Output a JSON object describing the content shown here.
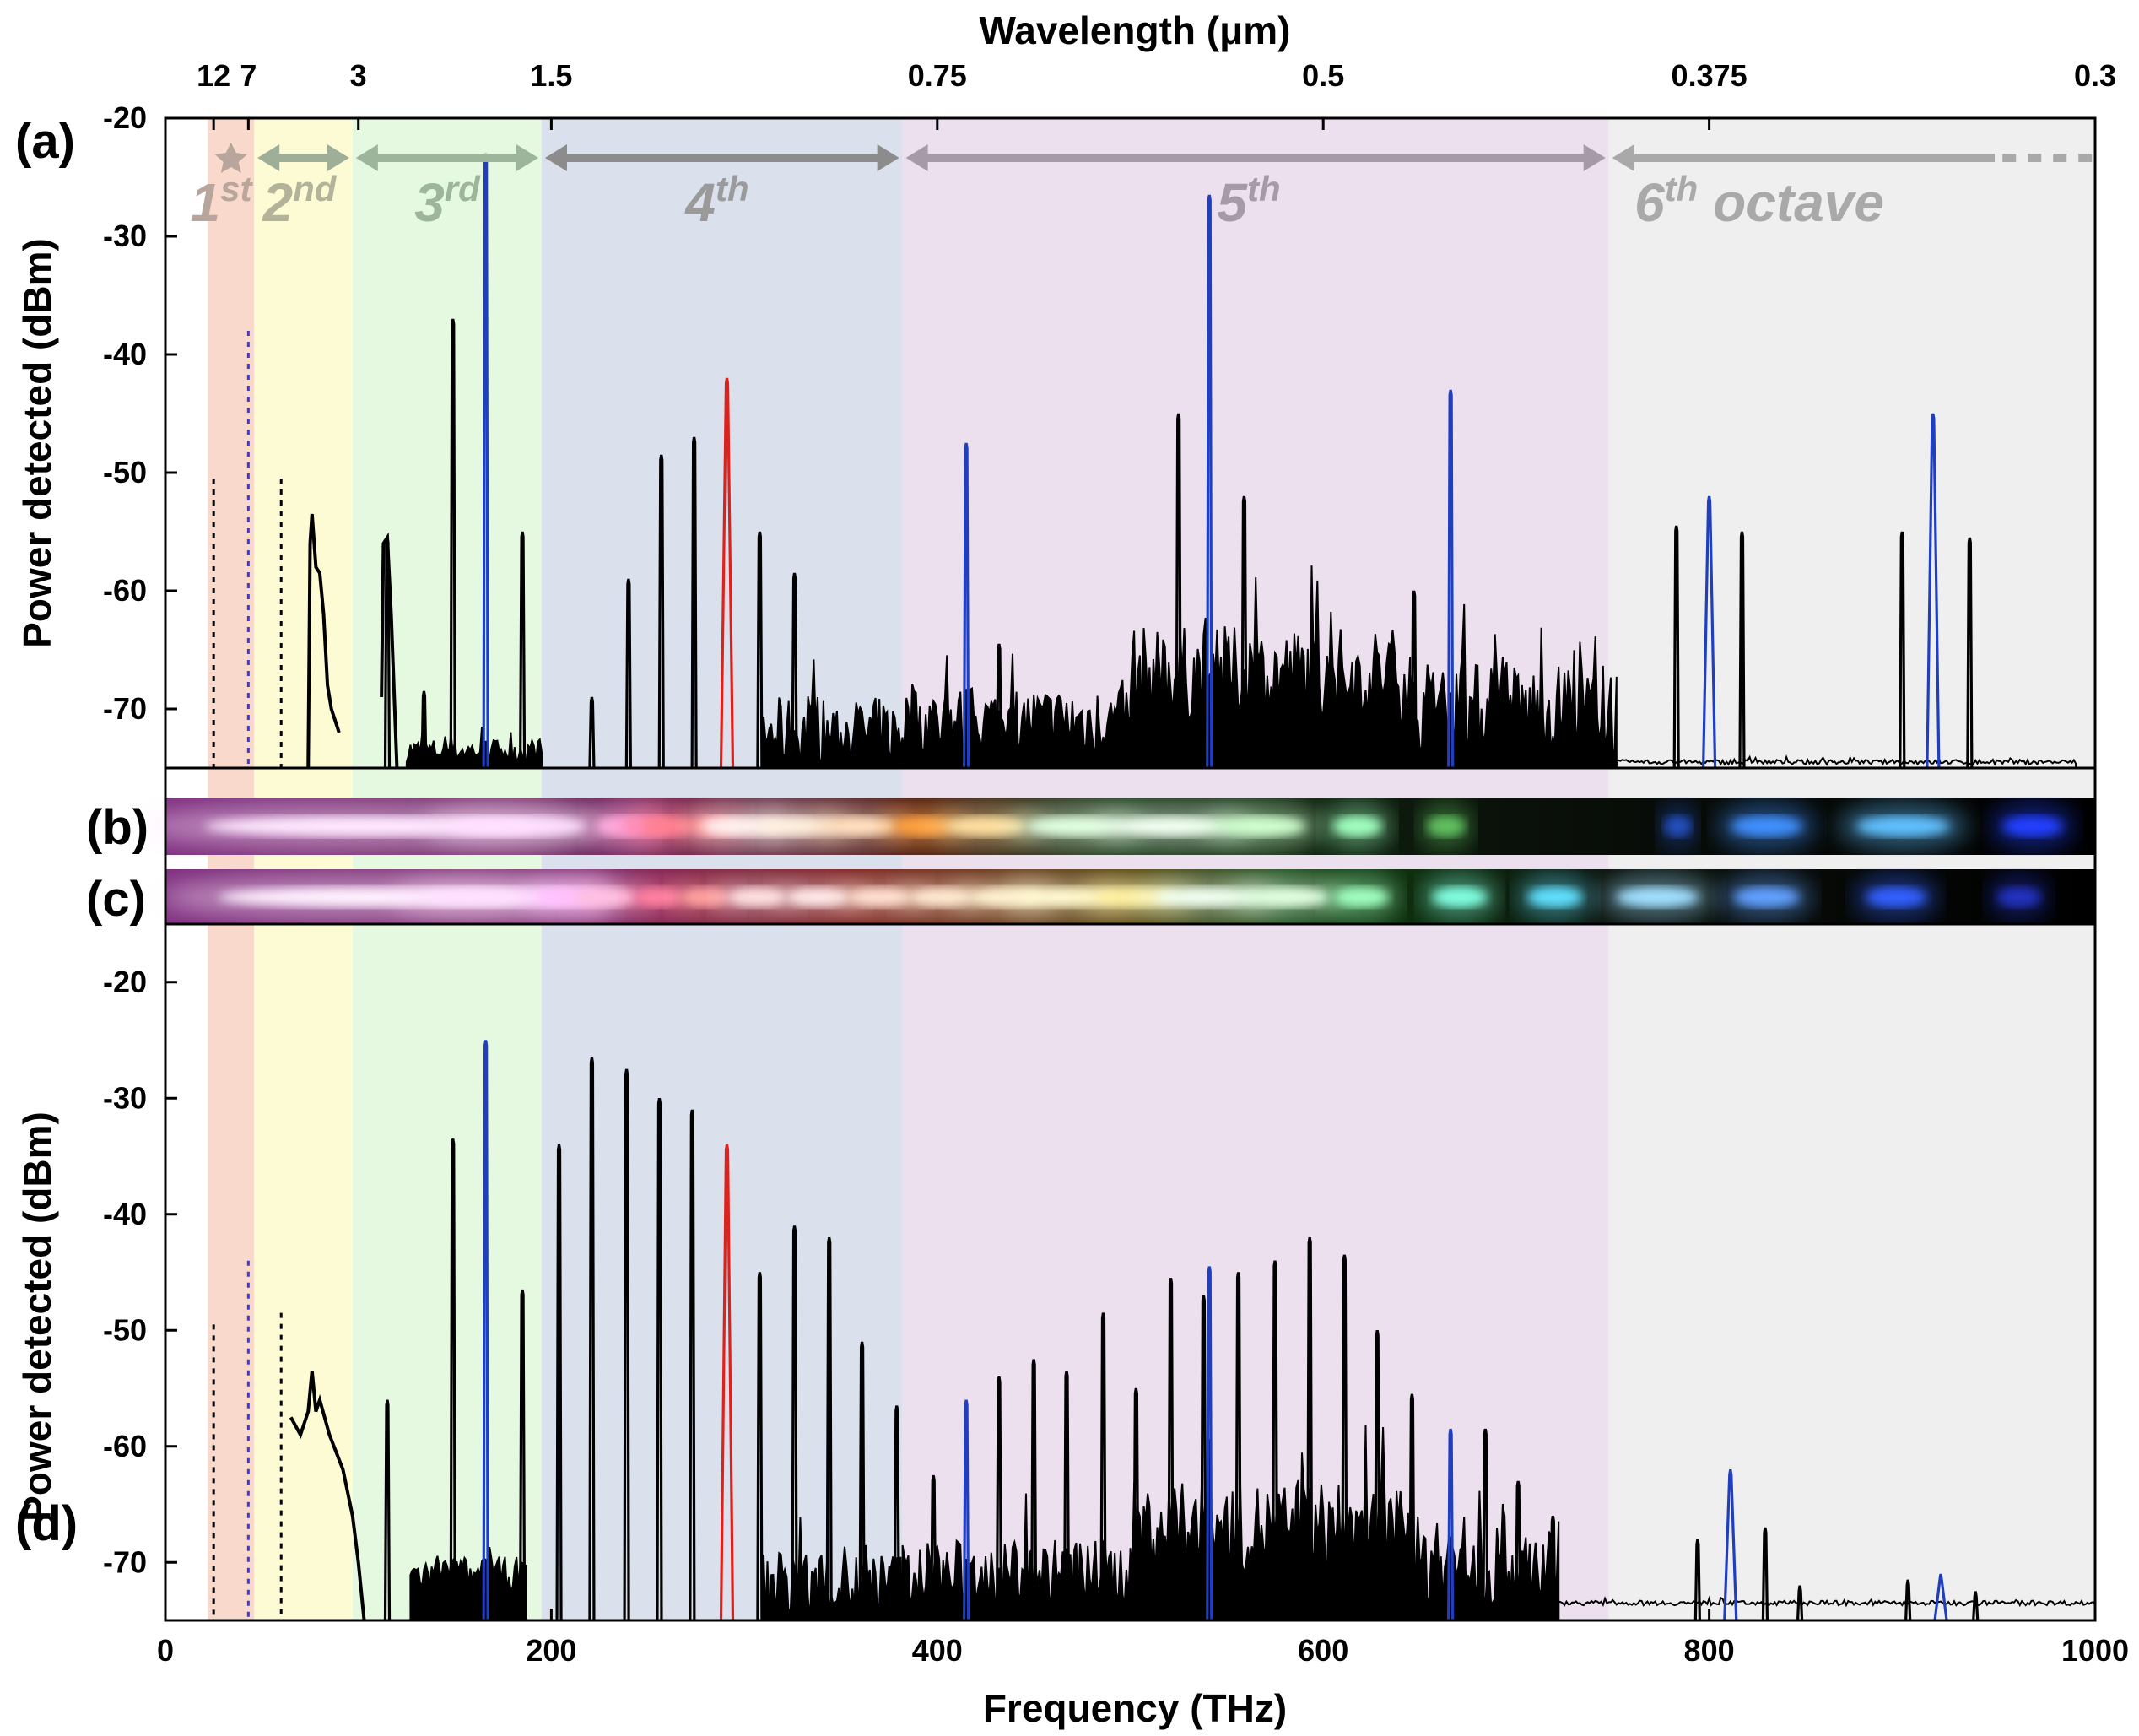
{
  "chart_data": [
    {
      "panel": "(a)",
      "type": "line",
      "xlabel": "Frequency (THz)",
      "ylabel": "Power detected (dBm)",
      "xlim": [
        0,
        1000
      ],
      "ylim": [
        -75,
        -20
      ],
      "yticks": [
        -20,
        -30,
        -40,
        -50,
        -60,
        -70
      ],
      "xticks": [
        0,
        200,
        400,
        600,
        800,
        1000
      ],
      "top_axis_label": "Wavelength (μm)",
      "top_ticks": [
        {
          "label": "12",
          "freq": 25
        },
        {
          "label": "7",
          "freq": 43
        },
        {
          "label": "3",
          "freq": 100
        },
        {
          "label": "1.5",
          "freq": 200
        },
        {
          "label": "0.75",
          "freq": 400
        },
        {
          "label": "0.5",
          "freq": 600
        },
        {
          "label": "0.375",
          "freq": 800
        },
        {
          "label": "0.3",
          "freq": 1000
        }
      ],
      "octaves": [
        {
          "label": "1",
          "sup": "st",
          "from": 22,
          "to": 46,
          "color": "#f9d9cc",
          "text_color": "#b8a59b"
        },
        {
          "label": "2",
          "sup": "nd",
          "from": 46,
          "to": 97,
          "color": "#fdfbd3",
          "text_color": "#b3b39a"
        },
        {
          "label": "3",
          "sup": "rd",
          "from": 97,
          "to": 195,
          "color": "#e5f8e0",
          "text_color": "#9db59a"
        },
        {
          "label": "4",
          "sup": "th",
          "from": 195,
          "to": 382,
          "color": "#dae1ec",
          "text_color": "#9a9a9a"
        },
        {
          "label": "5",
          "sup": "th",
          "from": 382,
          "to": 748,
          "color": "#ece0ef",
          "text_color": "#a69aa8"
        },
        {
          "label": "6",
          "sup": "th",
          "suffix": " octave",
          "from": 748,
          "to": 1000,
          "color": "#efefef",
          "text_color": "#a9a9a9"
        }
      ],
      "baseline_noise": [
        {
          "from": 125,
          "to": 195,
          "level": -73.5,
          "amp": 1
        },
        {
          "from": 310,
          "to": 382,
          "level": -72,
          "amp": 3
        },
        {
          "from": 382,
          "to": 500,
          "level": -71,
          "amp": 3
        },
        {
          "from": 500,
          "to": 645,
          "level": -67,
          "amp": 4
        },
        {
          "from": 645,
          "to": 752,
          "level": -70,
          "amp": 4
        },
        {
          "from": 752,
          "to": 990,
          "level": -74.5,
          "amp": 0.2
        }
      ],
      "series": [
        {
          "color": "#000000",
          "peaks": [
            {
              "x": 115,
              "y": -55.5
            },
            {
              "x": 134,
              "y": -68.5
            },
            {
              "x": 149,
              "y": -37
            },
            {
              "x": 185,
              "y": -55
            },
            {
              "x": 221,
              "y": -69
            },
            {
              "x": 240,
              "y": -59
            },
            {
              "x": 257,
              "y": -48.5
            },
            {
              "x": 274,
              "y": -47
            },
            {
              "x": 308,
              "y": -55
            },
            {
              "x": 326,
              "y": -58.5
            },
            {
              "x": 432,
              "y": -64.5
            },
            {
              "x": 525,
              "y": -45
            },
            {
              "x": 559,
              "y": -52
            },
            {
              "x": 647,
              "y": -60
            },
            {
              "x": 783,
              "y": -54.5
            },
            {
              "x": 817,
              "y": -55
            },
            {
              "x": 900,
              "y": -55
            },
            {
              "x": 935,
              "y": -55.5
            }
          ]
        },
        {
          "color": "#1f3fbf",
          "peaks": [
            {
              "x": 166,
              "y": -23
            },
            {
              "x": 415,
              "y": -47.5
            },
            {
              "x": 541,
              "y": -26.5
            },
            {
              "x": 666,
              "y": -43
            },
            {
              "x": 800,
              "y": -52
            },
            {
              "x": 916,
              "y": -45
            }
          ]
        },
        {
          "color": "#e0201a",
          "peaks": [
            {
              "x": 291,
              "y": -42
            }
          ]
        }
      ],
      "dotted_lines": [
        {
          "x": 25,
          "y_top": -50.5,
          "color": "#000000"
        },
        {
          "x": 43,
          "y_top": -38,
          "color": "#3a3ae0"
        },
        {
          "x": 60,
          "y_top": -50.5,
          "color": "#000000"
        }
      ]
    },
    {
      "panel": "(d)",
      "type": "line",
      "xlabel": "Frequency (THz)",
      "ylabel": "Power detected (dBm)",
      "xlim": [
        0,
        1000
      ],
      "ylim": [
        -75,
        -15
      ],
      "yticks": [
        -20,
        -30,
        -40,
        -50,
        -60,
        -70
      ],
      "xticks": [
        0,
        200,
        400,
        600,
        800,
        1000
      ],
      "baseline_noise": [
        {
          "from": 127,
          "to": 187,
          "level": -71,
          "amp": 1.5
        },
        {
          "from": 310,
          "to": 382,
          "level": -72,
          "amp": 3
        },
        {
          "from": 382,
          "to": 500,
          "level": -71,
          "amp": 3
        },
        {
          "from": 500,
          "to": 645,
          "level": -67,
          "amp": 4
        },
        {
          "from": 645,
          "to": 722,
          "level": -70,
          "amp": 4
        },
        {
          "from": 722,
          "to": 1000,
          "level": -73.5,
          "amp": 0.2
        }
      ],
      "series": [
        {
          "color": "#000000",
          "peaks": [
            {
              "x": 115,
              "y": -56
            },
            {
              "x": 149,
              "y": -33.5
            },
            {
              "x": 185,
              "y": -46.5
            },
            {
              "x": 204,
              "y": -34
            },
            {
              "x": 221,
              "y": -26.5
            },
            {
              "x": 239,
              "y": -27.5
            },
            {
              "x": 256,
              "y": -30
            },
            {
              "x": 273,
              "y": -31
            },
            {
              "x": 308,
              "y": -45
            },
            {
              "x": 326,
              "y": -41
            },
            {
              "x": 344,
              "y": -42
            },
            {
              "x": 361,
              "y": -51
            },
            {
              "x": 379,
              "y": -56.5
            },
            {
              "x": 398,
              "y": -62.5
            },
            {
              "x": 432,
              "y": -54
            },
            {
              "x": 450,
              "y": -52.5
            },
            {
              "x": 467,
              "y": -53.5
            },
            {
              "x": 486,
              "y": -48.5
            },
            {
              "x": 503,
              "y": -55
            },
            {
              "x": 521,
              "y": -45.5
            },
            {
              "x": 538,
              "y": -47
            },
            {
              "x": 556,
              "y": -45
            },
            {
              "x": 575,
              "y": -44
            },
            {
              "x": 593,
              "y": -42
            },
            {
              "x": 611,
              "y": -43.5
            },
            {
              "x": 628,
              "y": -50
            },
            {
              "x": 646,
              "y": -55.5
            },
            {
              "x": 684,
              "y": -58.5
            },
            {
              "x": 701,
              "y": -63
            },
            {
              "x": 719,
              "y": -66
            },
            {
              "x": 794,
              "y": -68
            },
            {
              "x": 829,
              "y": -67
            },
            {
              "x": 847,
              "y": -72
            },
            {
              "x": 903,
              "y": -71.5
            },
            {
              "x": 938,
              "y": -72.5
            }
          ]
        },
        {
          "color": "#1f3fbf",
          "peaks": [
            {
              "x": 166,
              "y": -25
            },
            {
              "x": 415,
              "y": -56
            },
            {
              "x": 541,
              "y": -44.5
            },
            {
              "x": 666,
              "y": -58.5
            },
            {
              "x": 811,
              "y": -62
            },
            {
              "x": 920,
              "y": -71
            }
          ]
        },
        {
          "color": "#e0201a",
          "peaks": [
            {
              "x": 291,
              "y": -34
            }
          ]
        }
      ],
      "dotted_lines": [
        {
          "x": 25,
          "y_top": -49.5,
          "color": "#000000"
        },
        {
          "x": 43,
          "y_top": -44,
          "color": "#3a3ae0"
        },
        {
          "x": 60,
          "y_top": -48.5,
          "color": "#000000"
        }
      ]
    }
  ],
  "photo_strips": [
    {
      "label": "(b)",
      "spots": [
        {
          "x": 270,
          "w": 120,
          "color": "#ffe8ff"
        },
        {
          "x": 380,
          "w": 50,
          "color": "#ffe0ff"
        },
        {
          "x": 455,
          "w": 18,
          "color": "#ffb0e0"
        },
        {
          "x": 473,
          "w": 18,
          "color": "#ff90c0"
        },
        {
          "x": 490,
          "w": 18,
          "color": "#ff8090"
        },
        {
          "x": 523,
          "w": 18,
          "color": "#ff8080"
        },
        {
          "x": 545,
          "w": 30,
          "color": "#fff0f0"
        },
        {
          "x": 584,
          "w": 28,
          "color": "#fff0e0"
        },
        {
          "x": 630,
          "w": 30,
          "color": "#ffe0c0"
        },
        {
          "x": 677,
          "w": 22,
          "color": "#ffa040"
        },
        {
          "x": 723,
          "w": 30,
          "color": "#ffe0a0"
        },
        {
          "x": 788,
          "w": 36,
          "color": "#e0ffe0"
        },
        {
          "x": 859,
          "w": 44,
          "color": "#f0fff0"
        },
        {
          "x": 925,
          "w": 32,
          "color": "#d0ffd0"
        },
        {
          "x": 995,
          "w": 18,
          "color": "#a0ffc0"
        },
        {
          "x": 1060,
          "w": 14,
          "color": "#60c060"
        },
        {
          "x": 1230,
          "w": 10,
          "color": "#2050c0"
        },
        {
          "x": 1295,
          "w": 26,
          "color": "#4090ff"
        },
        {
          "x": 1395,
          "w": 34,
          "color": "#60c0ff"
        },
        {
          "x": 1490,
          "w": 22,
          "color": "#2040ff"
        }
      ]
    },
    {
      "label": "(c)",
      "spots": [
        {
          "x": 270,
          "w": 110,
          "color": "#fff0ff"
        },
        {
          "x": 370,
          "w": 60,
          "color": "#ffe0ff"
        },
        {
          "x": 418,
          "w": 24,
          "color": "#ffc0ff"
        },
        {
          "x": 446,
          "w": 22,
          "color": "#ffc0e0"
        },
        {
          "x": 483,
          "w": 18,
          "color": "#ff80a0"
        },
        {
          "x": 517,
          "w": 18,
          "color": "#ffa0a0"
        },
        {
          "x": 555,
          "w": 22,
          "color": "#ffe0e0"
        },
        {
          "x": 600,
          "w": 24,
          "color": "#ffe8e8"
        },
        {
          "x": 645,
          "w": 24,
          "color": "#ffe0d0"
        },
        {
          "x": 690,
          "w": 24,
          "color": "#ffe8d0"
        },
        {
          "x": 737,
          "w": 28,
          "color": "#fff0d0"
        },
        {
          "x": 784,
          "w": 38,
          "color": "#fff8d0"
        },
        {
          "x": 834,
          "w": 30,
          "color": "#fff0a0"
        },
        {
          "x": 885,
          "w": 38,
          "color": "#f0fff0"
        },
        {
          "x": 943,
          "w": 32,
          "color": "#e0ffe0"
        },
        {
          "x": 998,
          "w": 20,
          "color": "#a0ffc0"
        },
        {
          "x": 1070,
          "w": 20,
          "color": "#80ffe0"
        },
        {
          "x": 1140,
          "w": 20,
          "color": "#60e0ff"
        },
        {
          "x": 1215,
          "w": 30,
          "color": "#a0e0ff"
        },
        {
          "x": 1295,
          "w": 24,
          "color": "#60a0ff"
        },
        {
          "x": 1390,
          "w": 22,
          "color": "#3060ff"
        },
        {
          "x": 1480,
          "w": 16,
          "color": "#2030c0"
        }
      ]
    }
  ]
}
